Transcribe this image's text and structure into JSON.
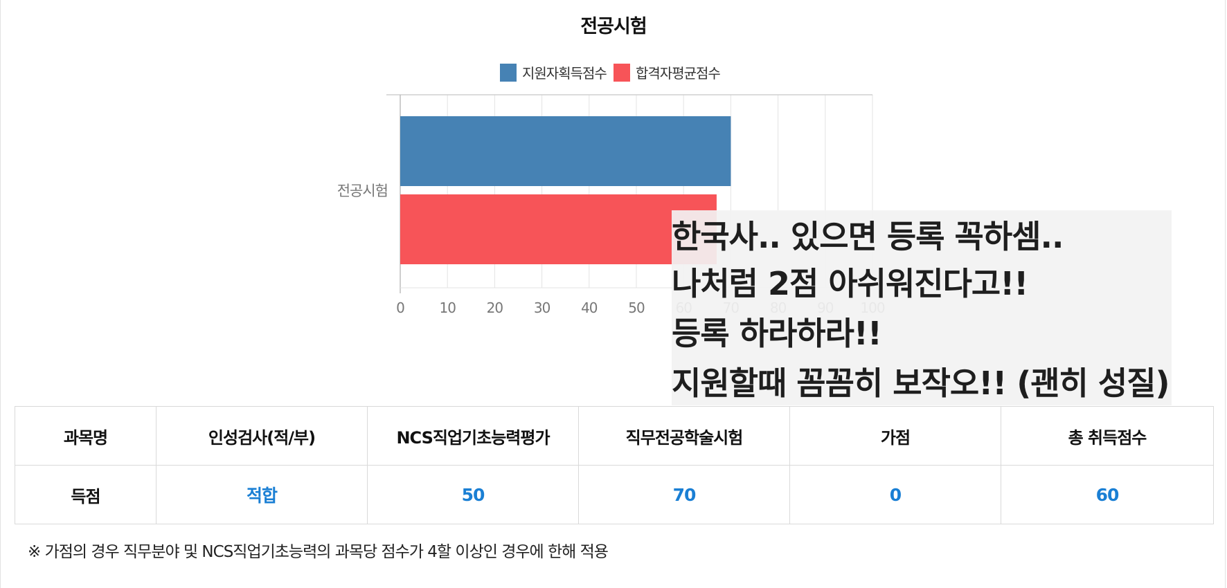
{
  "chart_data": {
    "type": "bar",
    "orientation": "horizontal",
    "title": "전공시험",
    "categories": [
      "전공시험"
    ],
    "series": [
      {
        "name": "지원자획득점수",
        "color": "#4682b4",
        "values": [
          70
        ]
      },
      {
        "name": "합격자평균점수",
        "color": "#f75458",
        "values": [
          67
        ]
      }
    ],
    "xlim": [
      0,
      100
    ],
    "xticks": [
      0,
      10,
      20,
      30,
      40,
      50,
      60,
      70,
      80,
      90,
      100
    ],
    "legend": "top-center",
    "grid": true
  },
  "overlay_note": {
    "lines": [
      "한국사.. 있으면 등록 꼭하셈..",
      "나처럼 2점 아쉬워진다고!!",
      "등록 하라하라!!",
      "지원할때 꼼꼼히 보작오!! (괜히 성질)"
    ]
  },
  "score_table": {
    "headers": [
      "과목명",
      "인성검사(적/부)",
      "NCS직업기초능력평가",
      "직무전공학술시험",
      "가점",
      "총 취득점수"
    ],
    "row_label": "득점",
    "values": [
      "적합",
      "50",
      "70",
      "0",
      "60"
    ]
  },
  "footnote": "※ 가점의 경우 직무분야 및 NCS직업기초능력의 과목당 점수가 4할 이상인 경우에 한해 적용"
}
